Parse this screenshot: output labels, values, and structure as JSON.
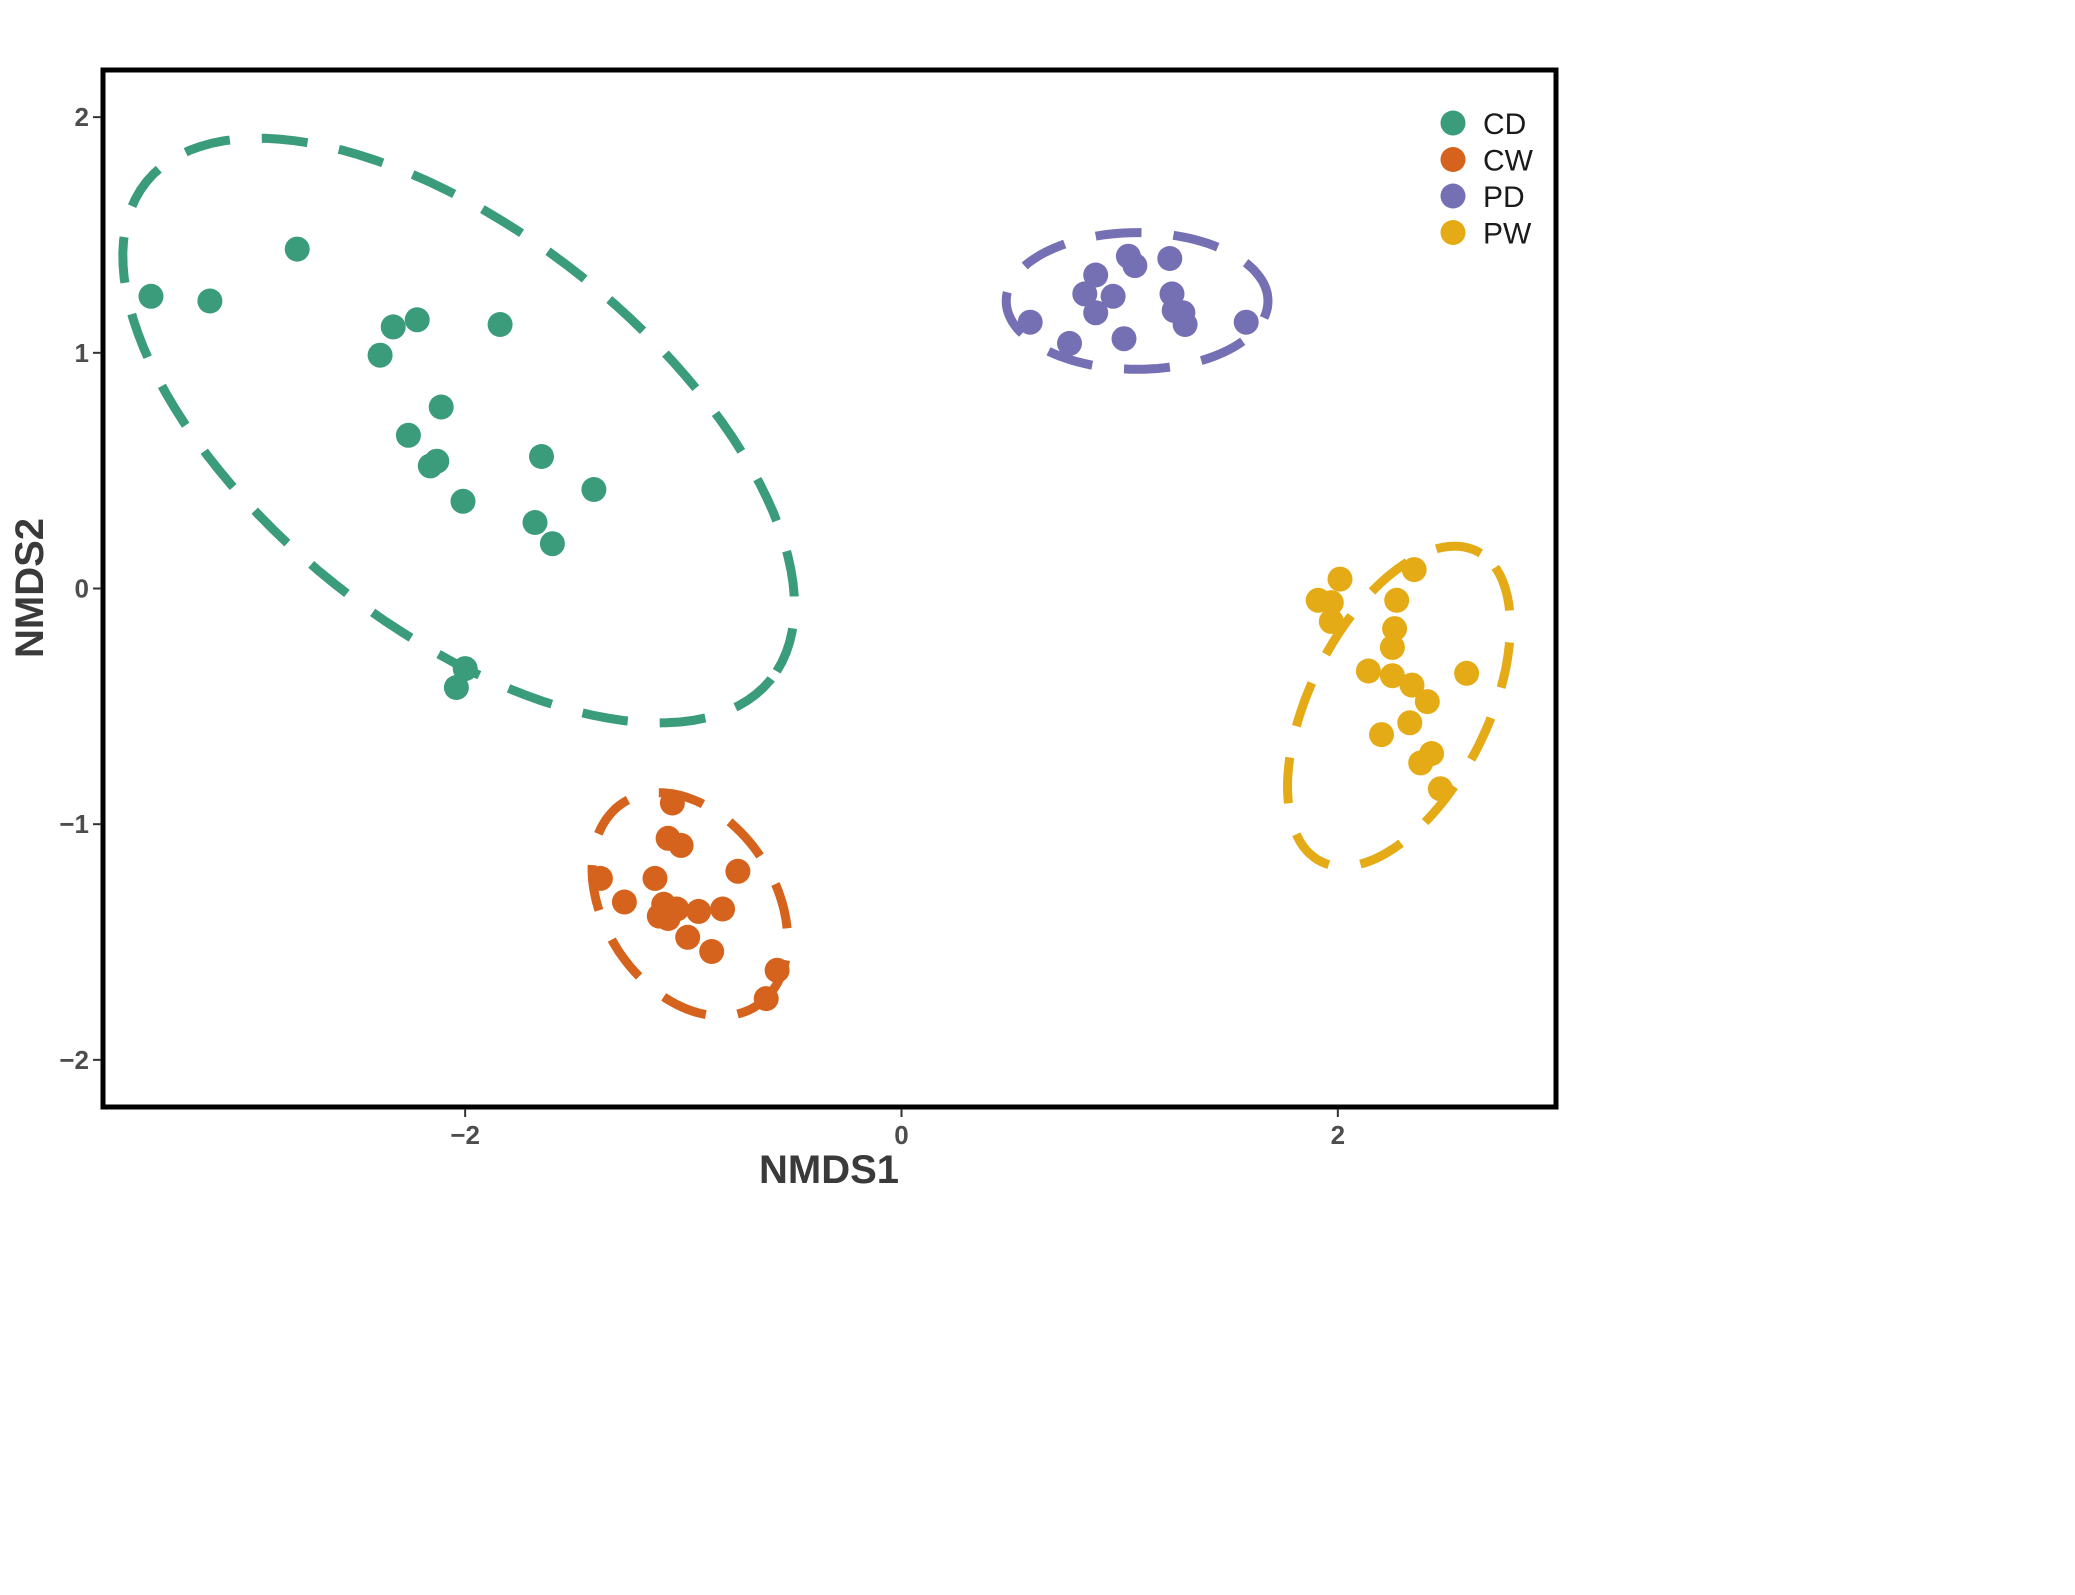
{
  "chart_data": {
    "type": "scatter",
    "xlabel": "NMDS1",
    "ylabel": "NMDS2",
    "xlim": [
      -3.66,
      3.0
    ],
    "ylim": [
      -2.2,
      2.2
    ],
    "x_ticks": [
      -2,
      0,
      2
    ],
    "x_tick_labels": [
      "−2",
      "0",
      "2"
    ],
    "y_ticks": [
      -2,
      -1,
      0,
      1,
      2
    ],
    "y_tick_labels": [
      "−2",
      "−1",
      "0",
      "1",
      "2"
    ],
    "grid": false,
    "legend_position": "top-right",
    "series": [
      {
        "name": "CD",
        "color": "#3a9c7a",
        "ellipse": {
          "cx": -2.03,
          "cy": 0.67,
          "rx": 1.78,
          "ry": 0.86,
          "angle_deg": -35
        },
        "points": [
          {
            "x": -3.44,
            "y": 1.24
          },
          {
            "x": -3.17,
            "y": 1.22
          },
          {
            "x": -2.77,
            "y": 1.44
          },
          {
            "x": -2.39,
            "y": 0.99
          },
          {
            "x": -2.33,
            "y": 1.11
          },
          {
            "x": -2.22,
            "y": 1.14
          },
          {
            "x": -1.84,
            "y": 1.12
          },
          {
            "x": -2.26,
            "y": 0.65
          },
          {
            "x": -2.11,
            "y": 0.77
          },
          {
            "x": -2.13,
            "y": 0.54
          },
          {
            "x": -2.16,
            "y": 0.52
          },
          {
            "x": -2.01,
            "y": 0.37
          },
          {
            "x": -1.65,
            "y": 0.56
          },
          {
            "x": -1.41,
            "y": 0.42
          },
          {
            "x": -1.68,
            "y": 0.28
          },
          {
            "x": -1.6,
            "y": 0.19
          },
          {
            "x": -2.0,
            "y": -0.34
          },
          {
            "x": -2.04,
            "y": -0.42
          }
        ]
      },
      {
        "name": "CW",
        "color": "#d5631d",
        "ellipse": {
          "cx": -0.97,
          "cy": -1.34,
          "rx": 0.53,
          "ry": 0.38,
          "angle_deg": -50
        },
        "points": [
          {
            "x": -1.05,
            "y": -0.91
          },
          {
            "x": -1.07,
            "y": -1.06
          },
          {
            "x": -1.01,
            "y": -1.09
          },
          {
            "x": -1.13,
            "y": -1.23
          },
          {
            "x": -1.38,
            "y": -1.23
          },
          {
            "x": -1.27,
            "y": -1.33
          },
          {
            "x": -1.09,
            "y": -1.34
          },
          {
            "x": -1.03,
            "y": -1.36
          },
          {
            "x": -1.11,
            "y": -1.39
          },
          {
            "x": -1.07,
            "y": -1.4
          },
          {
            "x": -0.93,
            "y": -1.37
          },
          {
            "x": -0.82,
            "y": -1.36
          },
          {
            "x": -0.98,
            "y": -1.48
          },
          {
            "x": -0.87,
            "y": -1.54
          },
          {
            "x": -0.75,
            "y": -1.2
          },
          {
            "x": -0.57,
            "y": -1.62
          },
          {
            "x": -0.62,
            "y": -1.74
          }
        ]
      },
      {
        "name": "PD",
        "color": "#7570b3",
        "ellipse": {
          "cx": 1.08,
          "cy": 1.22,
          "rx": 0.6,
          "ry": 0.29,
          "angle_deg": 0
        },
        "points": [
          {
            "x": 0.59,
            "y": 1.13
          },
          {
            "x": 0.77,
            "y": 1.04
          },
          {
            "x": 0.84,
            "y": 1.25
          },
          {
            "x": 0.89,
            "y": 1.33
          },
          {
            "x": 0.89,
            "y": 1.17
          },
          {
            "x": 0.97,
            "y": 1.24
          },
          {
            "x": 1.04,
            "y": 1.41
          },
          {
            "x": 1.07,
            "y": 1.37
          },
          {
            "x": 1.02,
            "y": 1.06
          },
          {
            "x": 1.23,
            "y": 1.4
          },
          {
            "x": 1.24,
            "y": 1.25
          },
          {
            "x": 1.25,
            "y": 1.18
          },
          {
            "x": 1.29,
            "y": 1.17
          },
          {
            "x": 1.3,
            "y": 1.12
          },
          {
            "x": 1.58,
            "y": 1.13
          }
        ]
      },
      {
        "name": "PW",
        "color": "#e5ab17",
        "ellipse": {
          "cx": 2.28,
          "cy": -0.5,
          "rx": 0.75,
          "ry": 0.4,
          "angle_deg": 60
        },
        "points": [
          {
            "x": 2.01,
            "y": 0.04
          },
          {
            "x": 1.91,
            "y": -0.05
          },
          {
            "x": 1.97,
            "y": -0.06
          },
          {
            "x": 1.97,
            "y": -0.14
          },
          {
            "x": 2.35,
            "y": 0.08
          },
          {
            "x": 2.27,
            "y": -0.05
          },
          {
            "x": 2.26,
            "y": -0.17
          },
          {
            "x": 2.25,
            "y": -0.25
          },
          {
            "x": 2.14,
            "y": -0.35
          },
          {
            "x": 2.25,
            "y": -0.37
          },
          {
            "x": 2.34,
            "y": -0.41
          },
          {
            "x": 2.41,
            "y": -0.48
          },
          {
            "x": 2.33,
            "y": -0.57
          },
          {
            "x": 2.2,
            "y": -0.62
          },
          {
            "x": 2.59,
            "y": -0.36
          },
          {
            "x": 2.43,
            "y": -0.7
          },
          {
            "x": 2.38,
            "y": -0.74
          },
          {
            "x": 2.47,
            "y": -0.85
          }
        ]
      }
    ]
  }
}
